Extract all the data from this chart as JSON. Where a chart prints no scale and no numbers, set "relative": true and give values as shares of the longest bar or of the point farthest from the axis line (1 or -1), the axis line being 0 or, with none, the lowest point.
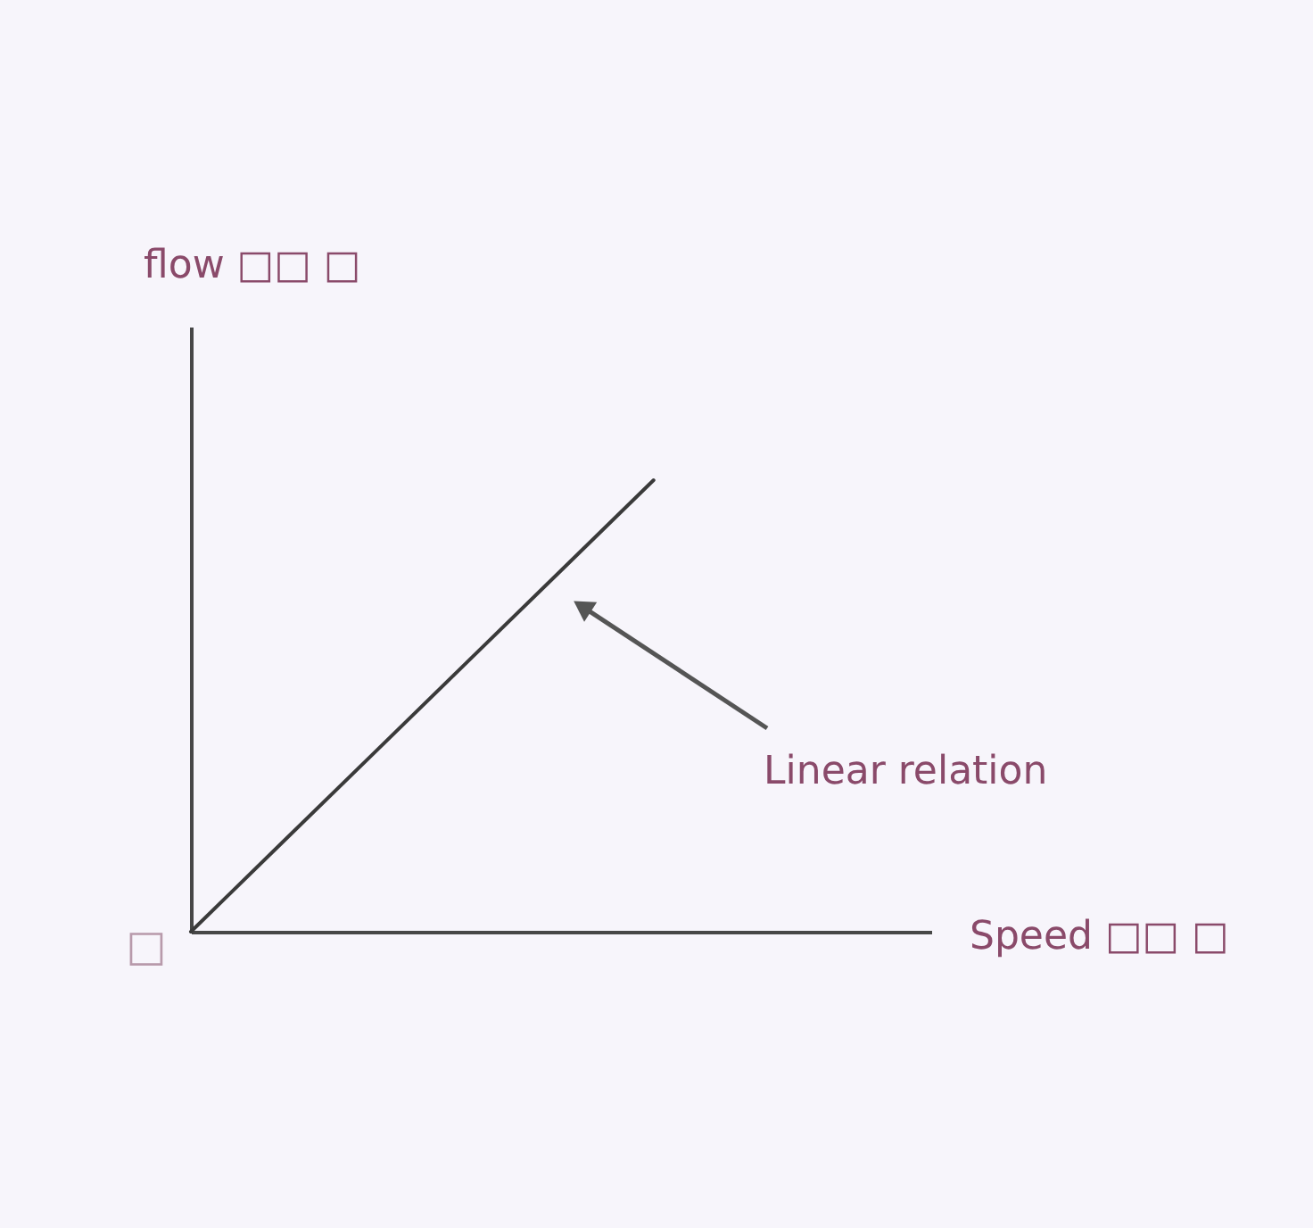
{
  "chart_data": {
    "type": "line",
    "relative": true,
    "xlabel": "Speed □□ □",
    "ylabel": "flow □□ □",
    "categories": [
      null,
      null,
      null,
      null,
      null,
      null,
      null,
      null,
      null
    ],
    "series": [
      {
        "color": "#3a3a3a",
        "values": [
          0,
          0.2,
          0.4,
          0.6,
          0.8,
          1,
          null,
          null,
          null
        ]
      }
    ],
    "annotations": [
      "Linear relation",
      "□"
    ]
  }
}
